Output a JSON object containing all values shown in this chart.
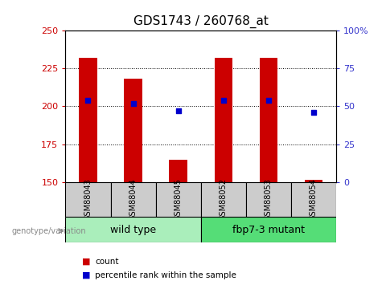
{
  "title": "GDS1743 / 260768_at",
  "categories": [
    "GSM88043",
    "GSM88044",
    "GSM88045",
    "GSM88052",
    "GSM88053",
    "GSM88054"
  ],
  "bar_values": [
    232,
    218,
    165,
    232,
    232,
    152
  ],
  "percentile_values": [
    54,
    52,
    47,
    54,
    54,
    46
  ],
  "ylim_left": [
    150,
    250
  ],
  "ylim_right": [
    0,
    100
  ],
  "yticks_left": [
    150,
    175,
    200,
    225,
    250
  ],
  "yticks_right": [
    0,
    25,
    50,
    75,
    100
  ],
  "bar_color": "#cc0000",
  "point_color": "#0000cc",
  "bar_width": 0.4,
  "groups": [
    {
      "label": "wild type",
      "indices": [
        0,
        1,
        2
      ],
      "color": "#aaeebb"
    },
    {
      "label": "fbp7-3 mutant",
      "indices": [
        3,
        4,
        5
      ],
      "color": "#55dd77"
    }
  ],
  "sample_box_color": "#cccccc",
  "xlabel_label": "genotype/variation",
  "legend_count_label": "count",
  "legend_percentile_label": "percentile rank within the sample",
  "tick_label_color_left": "#cc0000",
  "tick_label_color_right": "#3333cc",
  "title_fontsize": 11,
  "axis_fontsize": 8,
  "legend_fontsize": 8,
  "group_label_fontsize": 9,
  "sample_label_fontsize": 7
}
